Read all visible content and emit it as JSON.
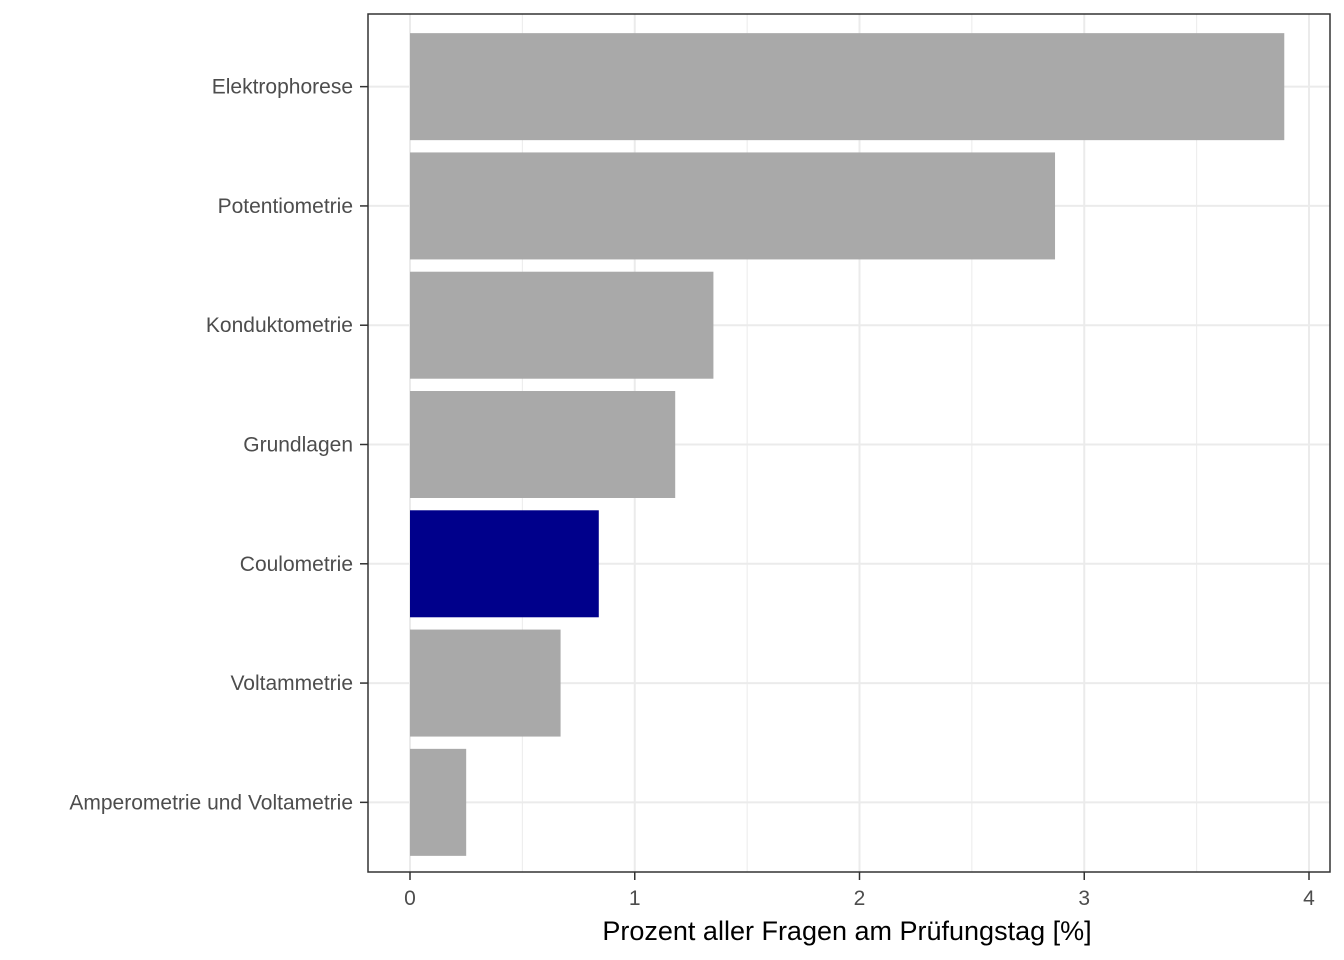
{
  "chart_data": {
    "type": "bar",
    "orientation": "horizontal",
    "title": "",
    "xlabel": "Prozent aller Fragen am Prüfungstag [%]",
    "ylabel": "",
    "xlim": [
      0,
      4
    ],
    "x_ticks": [
      "0",
      "1",
      "2",
      "3",
      "4"
    ],
    "categories": [
      "Elektrophorese",
      "Potentiometrie",
      "Konduktometrie",
      "Grundlagen",
      "Coulometrie",
      "Voltammetrie",
      "Amperometrie und Voltametrie"
    ],
    "values": [
      3.89,
      2.87,
      1.35,
      1.18,
      0.84,
      0.67,
      0.25
    ],
    "highlight": "Coulometrie",
    "grid": true,
    "legend": "none",
    "colors": {
      "bar": "#a9a9a9",
      "highlight": "#00008b",
      "grid": "#ebebeb",
      "panel_border": "#333333",
      "tick_text": "#4d4d4d"
    }
  }
}
